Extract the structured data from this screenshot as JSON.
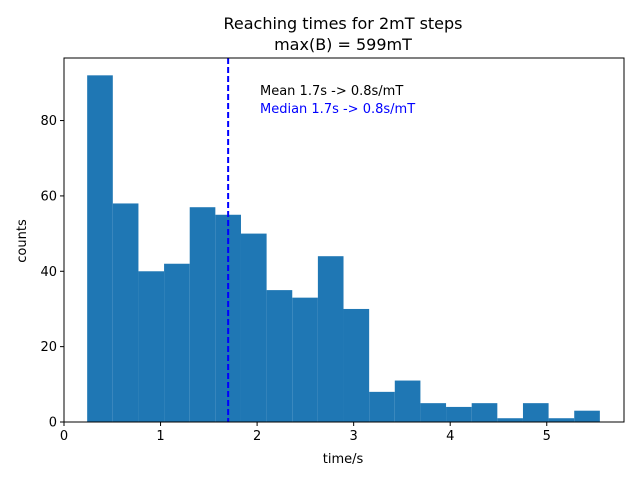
{
  "chart_data": {
    "type": "bar",
    "subtype": "histogram",
    "title": "Reaching times for 2mT steps",
    "subtitle": "max(B) = 599mT",
    "xlabel": "time/s",
    "ylabel": "counts",
    "xlim": [
      0,
      5.8
    ],
    "ylim": [
      0,
      96.6
    ],
    "xticks": [
      0,
      1,
      2,
      3,
      4,
      5
    ],
    "yticks": [
      0,
      20,
      40,
      60,
      80
    ],
    "bin_start": 0.24,
    "bin_width": 0.2655,
    "values": [
      92,
      58,
      40,
      42,
      57,
      55,
      50,
      35,
      33,
      44,
      30,
      8,
      11,
      5,
      4,
      5,
      1,
      5,
      1,
      3
    ],
    "bar_color": "#1f77b4",
    "vline": {
      "x": 1.7,
      "color": "#0000ff",
      "style": "dashed"
    },
    "annotations": [
      {
        "text": "Mean 1.7s -> 0.8s/mT",
        "color": "#000000"
      },
      {
        "text": "Median 1.7s -> 0.8s/mT",
        "color": "#0000ff"
      }
    ]
  }
}
